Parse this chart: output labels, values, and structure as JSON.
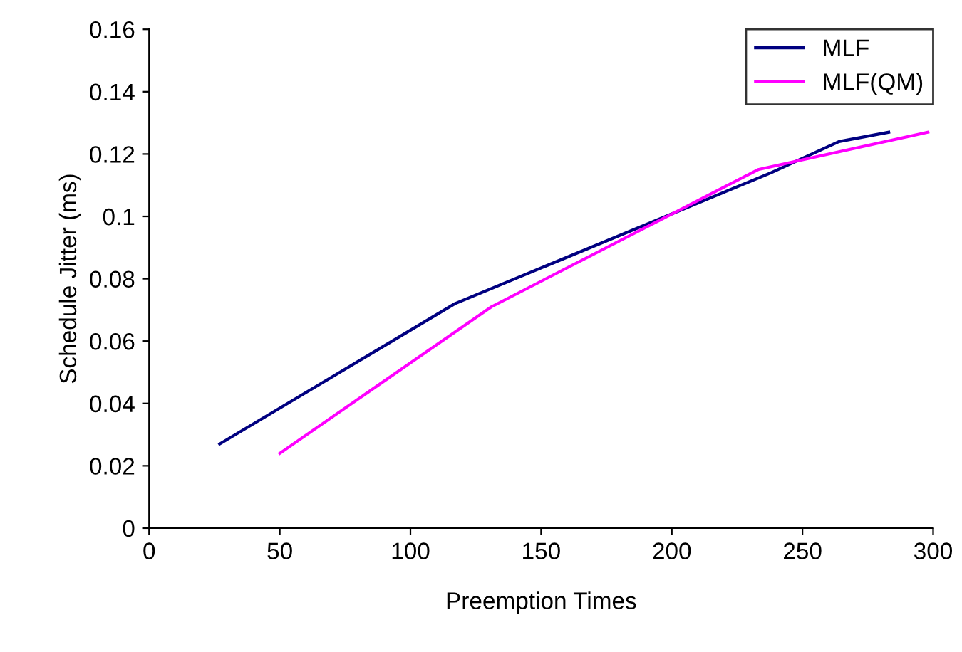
{
  "chart_data": {
    "type": "line",
    "xlabel": "Preemption Times",
    "ylabel": "Schedule Jitter (ms)",
    "series": [
      {
        "name": "MLF",
        "color": "#000080",
        "x": [
          27,
          117,
          238,
          264,
          283
        ],
        "values": [
          0.027,
          0.072,
          0.114,
          0.124,
          0.127
        ]
      },
      {
        "name": "MLF(QM)",
        "color": "#ff00ff",
        "x": [
          50,
          131,
          233,
          298
        ],
        "values": [
          0.024,
          0.071,
          0.115,
          0.127
        ]
      }
    ],
    "xlim": [
      0,
      300
    ],
    "xticks": [
      0,
      50,
      100,
      150,
      200,
      250,
      300
    ],
    "ylim": [
      0,
      0.16
    ],
    "yticks": [
      {
        "value": 0,
        "label": "0"
      },
      {
        "value": 0.02,
        "label": "0.02"
      },
      {
        "value": 0.04,
        "label": "0.04"
      },
      {
        "value": 0.06,
        "label": "0.06"
      },
      {
        "value": 0.08,
        "label": "0.08"
      },
      {
        "value": 0.1,
        "label": "0.1"
      },
      {
        "value": 0.12,
        "label": "0.12"
      },
      {
        "value": 0.14,
        "label": "0.14"
      },
      {
        "value": 0.16,
        "label": "0.16"
      }
    ],
    "grid": false,
    "legend": "top right",
    "marker": "none",
    "line_style": "solid"
  }
}
